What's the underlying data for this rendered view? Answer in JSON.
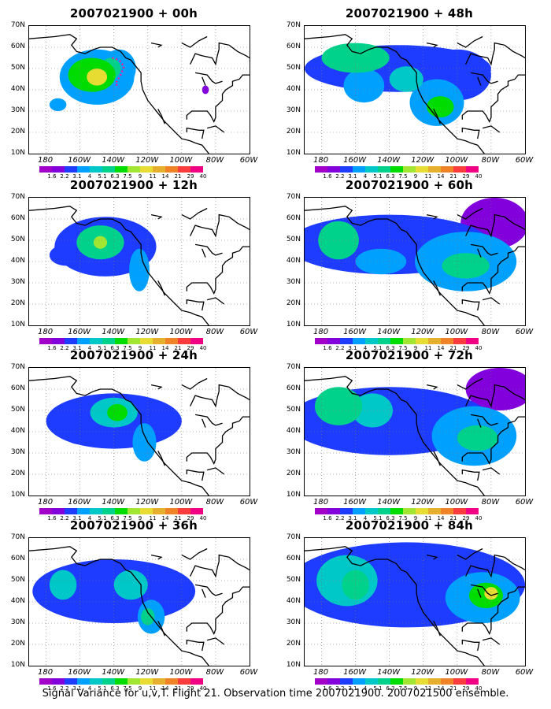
{
  "panels": [
    {
      "title": "2007021900 + 00h",
      "blobs": [
        {
          "lon": -150,
          "lat": 46,
          "rx": 22,
          "ry": 13,
          "level": 3
        },
        {
          "lon": -153,
          "lat": 47,
          "rx": 14,
          "ry": 8,
          "level": 6
        },
        {
          "lon": -150,
          "lat": 46,
          "rx": 6,
          "ry": 4,
          "level": 8
        },
        {
          "lon": -137,
          "lat": 50,
          "rx": 10,
          "ry": 9,
          "level": 3
        },
        {
          "lon": -142,
          "lat": 50,
          "rx": 6,
          "ry": 5,
          "level": 5
        },
        {
          "lon": -173,
          "lat": 33,
          "rx": 5,
          "ry": 3,
          "level": 3
        },
        {
          "lon": -86,
          "lat": 40,
          "rx": 2,
          "ry": 2,
          "level": 1
        }
      ]
    },
    {
      "title": "2007021900 + 48h",
      "blobs": [
        {
          "lon": -135,
          "lat": 50,
          "rx": 55,
          "ry": 11,
          "level": 2
        },
        {
          "lon": -160,
          "lat": 55,
          "rx": 20,
          "ry": 7,
          "level": 5
        },
        {
          "lon": -112,
          "lat": 34,
          "rx": 16,
          "ry": 11,
          "level": 3
        },
        {
          "lon": -110,
          "lat": 32,
          "rx": 8,
          "ry": 5,
          "level": 6
        },
        {
          "lon": -100,
          "lat": 47,
          "rx": 20,
          "ry": 12,
          "level": 2
        },
        {
          "lon": -155,
          "lat": 42,
          "rx": 12,
          "ry": 8,
          "level": 3
        },
        {
          "lon": -130,
          "lat": 45,
          "rx": 10,
          "ry": 6,
          "level": 4
        }
      ]
    },
    {
      "title": "2007021900 + 12h",
      "blobs": [
        {
          "lon": -145,
          "lat": 47,
          "rx": 30,
          "ry": 14,
          "level": 2
        },
        {
          "lon": -148,
          "lat": 49,
          "rx": 14,
          "ry": 8,
          "level": 5
        },
        {
          "lon": -148,
          "lat": 49,
          "rx": 4,
          "ry": 3,
          "level": 7
        },
        {
          "lon": -125,
          "lat": 36,
          "rx": 6,
          "ry": 10,
          "level": 3
        },
        {
          "lon": -168,
          "lat": 43,
          "rx": 10,
          "ry": 5,
          "level": 2
        }
      ]
    },
    {
      "title": "2007021900 + 60h",
      "blobs": [
        {
          "lon": -140,
          "lat": 48,
          "rx": 60,
          "ry": 14,
          "level": 2
        },
        {
          "lon": -170,
          "lat": 50,
          "rx": 12,
          "ry": 9,
          "level": 5
        },
        {
          "lon": -95,
          "lat": 40,
          "rx": 30,
          "ry": 14,
          "level": 3
        },
        {
          "lon": -95,
          "lat": 38,
          "rx": 14,
          "ry": 6,
          "level": 5
        },
        {
          "lon": -78,
          "lat": 58,
          "rx": 20,
          "ry": 12,
          "level": 1
        },
        {
          "lon": -145,
          "lat": 40,
          "rx": 15,
          "ry": 6,
          "level": 3
        }
      ]
    },
    {
      "title": "2007021900 + 24h",
      "blobs": [
        {
          "lon": -140,
          "lat": 45,
          "rx": 40,
          "ry": 13,
          "level": 2
        },
        {
          "lon": -140,
          "lat": 49,
          "rx": 14,
          "ry": 7,
          "level": 4
        },
        {
          "lon": -138,
          "lat": 49,
          "rx": 6,
          "ry": 4,
          "level": 6
        },
        {
          "lon": -122,
          "lat": 35,
          "rx": 7,
          "ry": 9,
          "level": 3
        },
        {
          "lon": -160,
          "lat": 40,
          "rx": 10,
          "ry": 6,
          "level": 2
        }
      ]
    },
    {
      "title": "2007021900 + 72h",
      "blobs": [
        {
          "lon": -140,
          "lat": 45,
          "rx": 60,
          "ry": 16,
          "level": 2
        },
        {
          "lon": -170,
          "lat": 52,
          "rx": 14,
          "ry": 9,
          "level": 5
        },
        {
          "lon": -150,
          "lat": 50,
          "rx": 12,
          "ry": 8,
          "level": 4
        },
        {
          "lon": -90,
          "lat": 38,
          "rx": 25,
          "ry": 14,
          "level": 3
        },
        {
          "lon": -88,
          "lat": 37,
          "rx": 12,
          "ry": 6,
          "level": 5
        },
        {
          "lon": -75,
          "lat": 60,
          "rx": 20,
          "ry": 10,
          "level": 1
        }
      ]
    },
    {
      "title": "2007021900 + 36h",
      "blobs": [
        {
          "lon": -140,
          "lat": 45,
          "rx": 48,
          "ry": 15,
          "level": 2
        },
        {
          "lon": -170,
          "lat": 48,
          "rx": 8,
          "ry": 7,
          "level": 4
        },
        {
          "lon": -130,
          "lat": 48,
          "rx": 10,
          "ry": 7,
          "level": 4
        },
        {
          "lon": -118,
          "lat": 33,
          "rx": 8,
          "ry": 8,
          "level": 3
        },
        {
          "lon": -120,
          "lat": 33,
          "rx": 4,
          "ry": 4,
          "level": 5
        }
      ]
    },
    {
      "title": "2007021900 + 84h",
      "blobs": [
        {
          "lon": -130,
          "lat": 48,
          "rx": 70,
          "ry": 20,
          "level": 2
        },
        {
          "lon": -165,
          "lat": 50,
          "rx": 18,
          "ry": 12,
          "level": 4
        },
        {
          "lon": -160,
          "lat": 48,
          "rx": 8,
          "ry": 7,
          "level": 5
        },
        {
          "lon": -85,
          "lat": 42,
          "rx": 22,
          "ry": 12,
          "level": 3
        },
        {
          "lon": -83,
          "lat": 43,
          "rx": 10,
          "ry": 6,
          "level": 6
        },
        {
          "lon": -80,
          "lat": 44,
          "rx": 4,
          "ry": 3,
          "level": 8
        }
      ]
    }
  ],
  "axes": {
    "ylabels": [
      "70N",
      "60N",
      "50N",
      "40N",
      "30N",
      "20N",
      "10N"
    ],
    "xlabels": [
      "180",
      "160W",
      "140W",
      "120W",
      "100W",
      "80W",
      "60W"
    ]
  },
  "colorbar": {
    "colors": [
      "#a000c8",
      "#8200dc",
      "#1e3cff",
      "#00a0ff",
      "#00c8c8",
      "#00d28c",
      "#00dc00",
      "#a0e632",
      "#e6dc32",
      "#e6af2d",
      "#f08228",
      "#fa3c3c",
      "#f00082"
    ],
    "labels": [
      "1.6",
      "2.2",
      "3.1",
      "4",
      "5.1",
      "6.3",
      "7.5",
      "9",
      "11",
      "14",
      "21",
      "29",
      "40"
    ]
  },
  "caption": "Signal Variance for u,v,T. Flight 21. Observation time 2007021900. 2007021500 ensemble.",
  "flight_track": [
    [
      -141,
      55
    ],
    [
      -137,
      54
    ],
    [
      -134,
      51
    ],
    [
      -136,
      47
    ],
    [
      -139,
      43
    ],
    [
      -137,
      41
    ]
  ]
}
